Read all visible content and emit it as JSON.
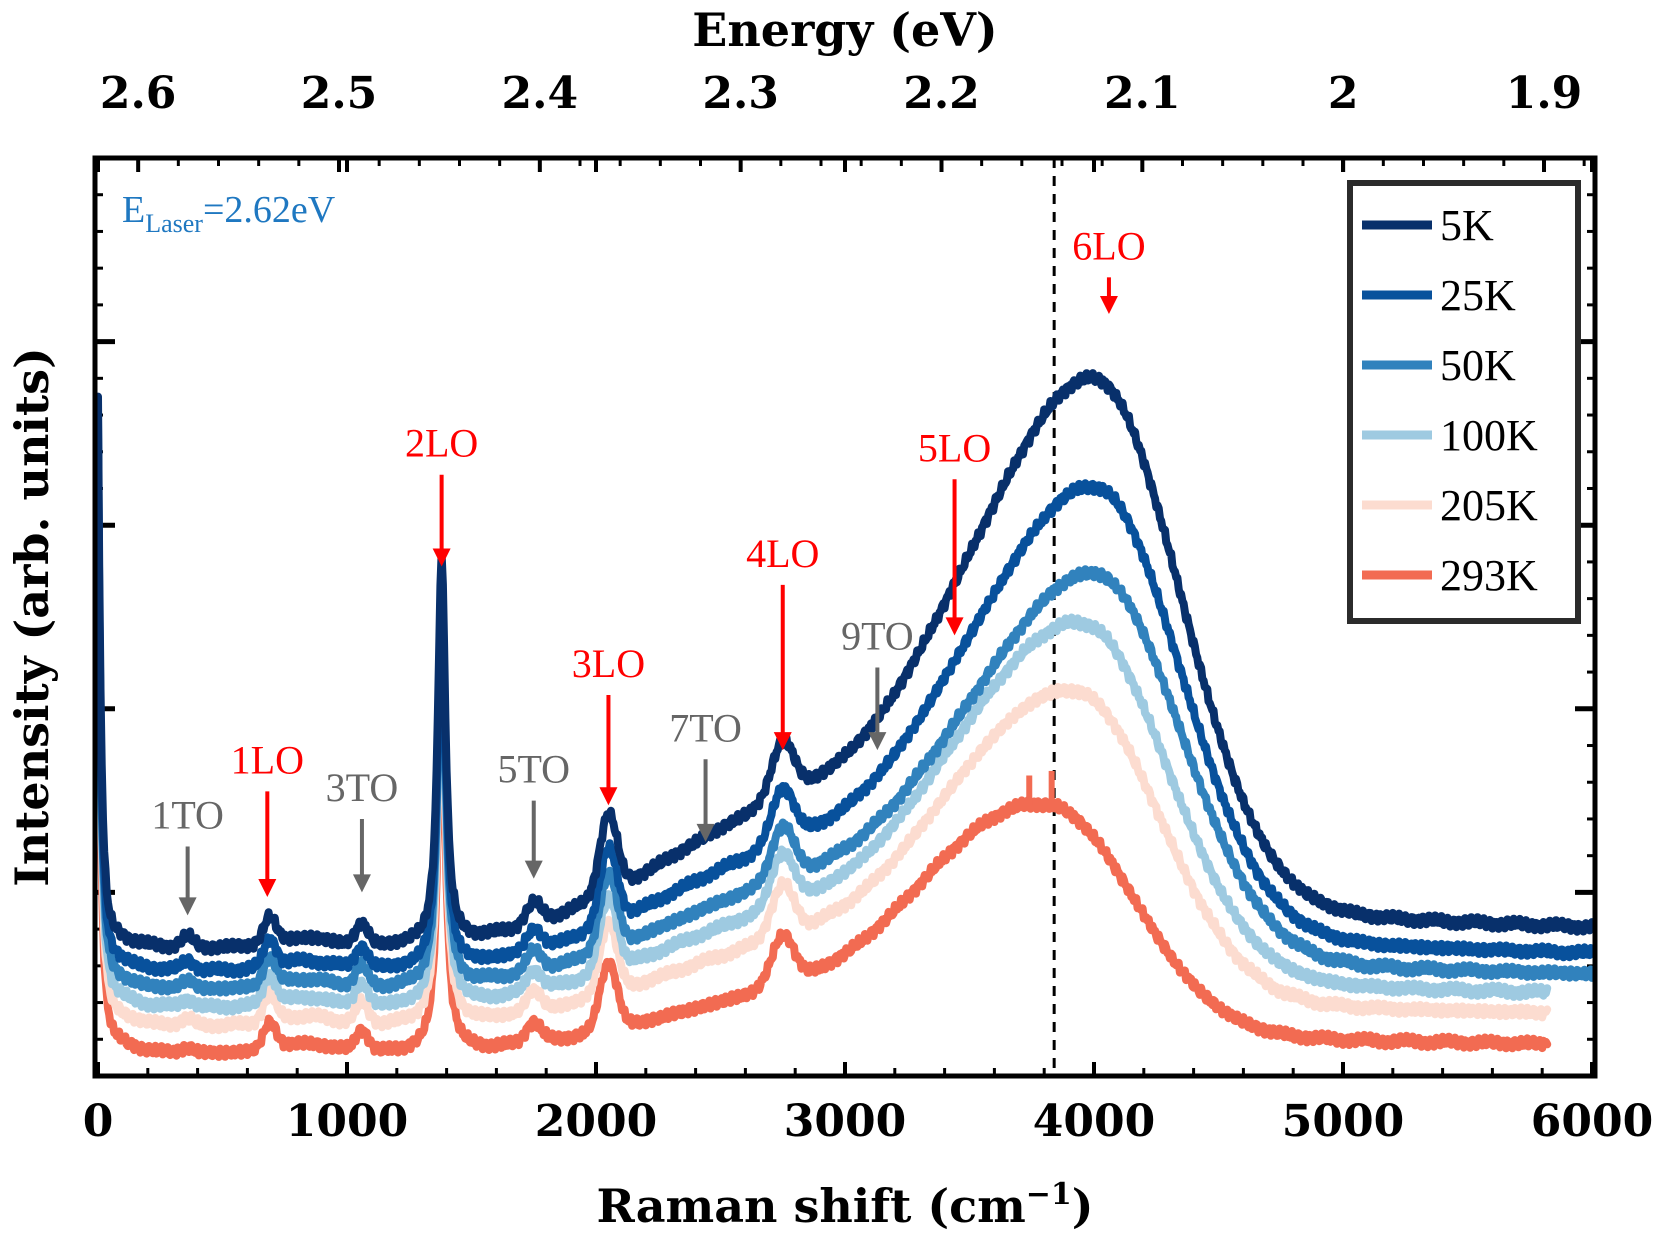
{
  "chart_data": {
    "type": "line",
    "title": "",
    "xlabel": "Raman shift (cm",
    "xlabel_sup": "−1",
    "xlabel_end": ")",
    "ylabel": "Intensity (arb. units)",
    "top_xlabel": "Energy (eV)",
    "xlim": [
      0,
      6000
    ],
    "ylim": [
      0,
      1
    ],
    "x_ticks": [
      {
        "value": 0,
        "label": "0"
      },
      {
        "value": 1000,
        "label": "1000"
      },
      {
        "value": 2000,
        "label": "2000"
      },
      {
        "value": 3000,
        "label": "3000"
      },
      {
        "value": 4000,
        "label": "4000"
      },
      {
        "value": 5000,
        "label": "5000"
      },
      {
        "value": 6000,
        "label": "6000"
      }
    ],
    "top_ticks": [
      {
        "value": 2.6,
        "label": "2.6"
      },
      {
        "value": 2.5,
        "label": "2.5"
      },
      {
        "value": 2.4,
        "label": "2.4"
      },
      {
        "value": 2.3,
        "label": "2.3"
      },
      {
        "value": 2.2,
        "label": "2.2"
      },
      {
        "value": 2.1,
        "label": "2.1"
      },
      {
        "value": 2.0,
        "label": "2"
      },
      {
        "value": 1.9,
        "label": "1.9"
      }
    ],
    "laser_energy_ev": 2.62,
    "laser_text_main": "E",
    "laser_text_sub": "Laser",
    "laser_text_rest": "=2.62eV",
    "laser_color": "#1f78c1",
    "dashed_line_x": 3840,
    "series": [
      {
        "name": "5K",
        "color": "#08306b",
        "baseline": 0.14,
        "peak_scale": 1.0,
        "broad_offset": 0
      },
      {
        "name": "25K",
        "color": "#08519c",
        "baseline": 0.115,
        "peak_scale": 0.85,
        "broad_offset": 0
      },
      {
        "name": "50K",
        "color": "#3182bd",
        "baseline": 0.095,
        "peak_scale": 0.73,
        "broad_offset": 0
      },
      {
        "name": "100K",
        "color": "#9ecae1",
        "baseline": 0.075,
        "peak_scale": 0.67,
        "broad_offset": -50
      },
      {
        "name": "205K",
        "color": "#fcdcd0",
        "baseline": 0.055,
        "peak_scale": 0.58,
        "broad_offset": -80
      },
      {
        "name": "293K",
        "color": "#f26b52",
        "baseline": 0.025,
        "peak_scale": 0.42,
        "broad_offset": -180
      }
    ],
    "annotations": [
      {
        "label": "1TO",
        "x": 360,
        "color": "#666666",
        "y": 0.175,
        "len": 0.075
      },
      {
        "label": "1LO",
        "x": 680,
        "color": "#ff0000",
        "y": 0.195,
        "len": 0.115
      },
      {
        "label": "3TO",
        "x": 1060,
        "color": "#666666",
        "y": 0.2,
        "len": 0.08
      },
      {
        "label": "2LO",
        "x": 1380,
        "color": "#ff0000",
        "y": 0.555,
        "len": 0.1
      },
      {
        "label": "5TO",
        "x": 1750,
        "color": "#666666",
        "y": 0.215,
        "len": 0.085
      },
      {
        "label": "3LO",
        "x": 2050,
        "color": "#ff0000",
        "y": 0.295,
        "len": 0.12
      },
      {
        "label": "7TO",
        "x": 2440,
        "color": "#666666",
        "y": 0.255,
        "len": 0.09
      },
      {
        "label": "4LO",
        "x": 2750,
        "color": "#ff0000",
        "y": 0.355,
        "len": 0.18
      },
      {
        "label": "9TO",
        "x": 3130,
        "color": "#666666",
        "y": 0.355,
        "len": 0.09
      },
      {
        "label": "5LO",
        "x": 3440,
        "color": "#ff0000",
        "y": 0.48,
        "len": 0.17
      },
      {
        "label": "6LO",
        "x": 4060,
        "color": "#ff0000",
        "y": 0.83,
        "len": 0.04
      }
    ]
  }
}
